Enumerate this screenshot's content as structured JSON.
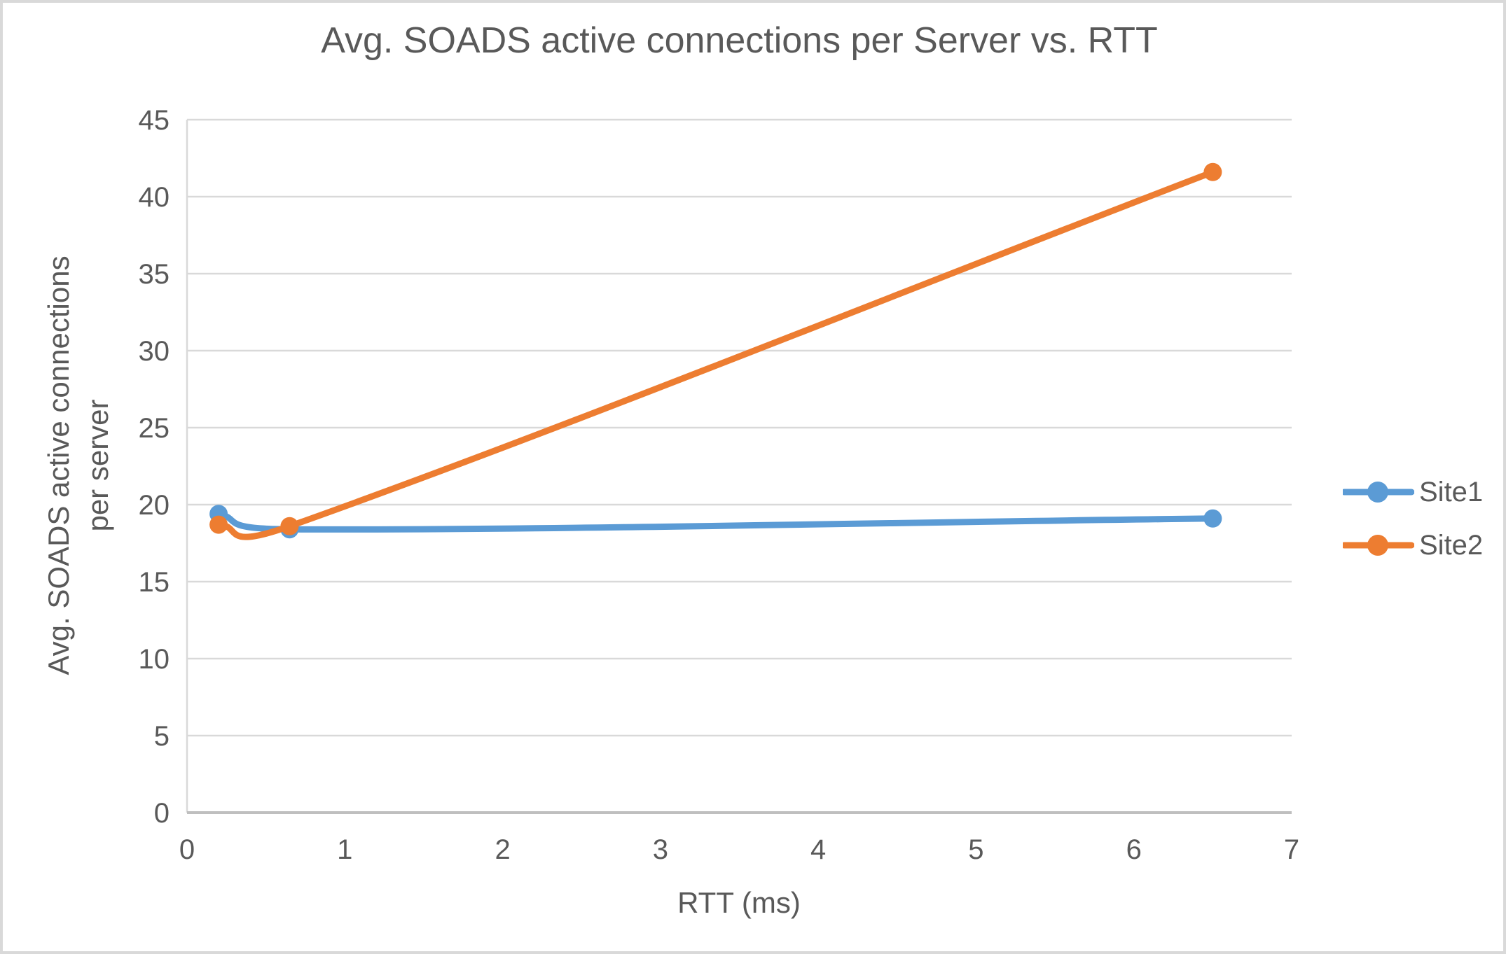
{
  "chart_data": {
    "type": "line",
    "title": "Avg. SOADS active connections per Server vs. RTT",
    "xlabel": "RTT (ms)",
    "ylabel": "Avg. SOADS active connections per server",
    "ylabel_lines": [
      "Avg. SOADS active connections",
      "per server"
    ],
    "x": [
      0.2,
      0.65,
      6.5
    ],
    "series": [
      {
        "name": "Site1",
        "color": "#5B9BD5",
        "values": [
          19.4,
          18.4,
          19.1
        ]
      },
      {
        "name": "Site2",
        "color": "#ED7D31",
        "values": [
          18.7,
          18.6,
          41.6
        ]
      }
    ],
    "xlim": [
      0,
      7
    ],
    "ylim": [
      0,
      45
    ],
    "x_ticks": [
      0,
      1,
      2,
      3,
      4,
      5,
      6,
      7
    ],
    "y_ticks": [
      0,
      5,
      10,
      15,
      20,
      25,
      30,
      35,
      40,
      45
    ],
    "grid": "horizontal-only",
    "legend_position": "right",
    "line_style": "smooth",
    "marker_style": "circle"
  },
  "colors": {
    "text": "#595959",
    "gridline": "#D9D9D9",
    "axis_line": "#BFBFBF",
    "y_axis_line": "#D9D9D9",
    "background": "#FFFFFF",
    "border": "#D9D9D9"
  }
}
